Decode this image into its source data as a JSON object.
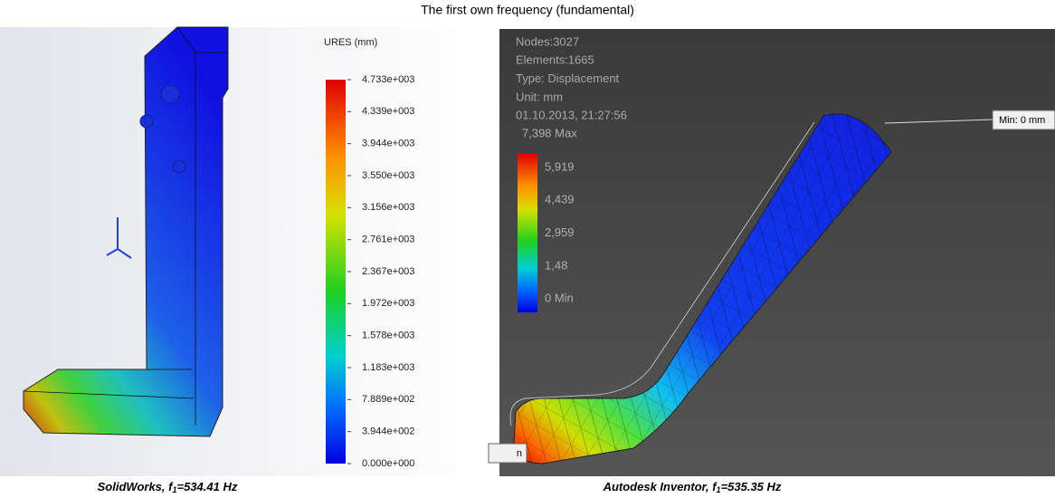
{
  "title": "The first own frequency (fundamental)",
  "left_panel": {
    "legend_title": "URES (mm)",
    "legend_labels": [
      "4.733e+003",
      "4.339e+003",
      "3.944e+003",
      "3.550e+003",
      "3.156e+003",
      "2.761e+003",
      "2.367e+003",
      "1.972e+003",
      "1.578e+003",
      "1.183e+003",
      "7.889e+002",
      "3.944e+002",
      "0.000e+000"
    ],
    "caption": {
      "prefix": "SolidWorks, f",
      "sub": "1",
      "suffix": "=534.41 Hz"
    }
  },
  "right_panel": {
    "info": [
      "Nodes:3027",
      "Elements:1665",
      "Type: Displacement",
      "Unit: mm",
      "01.10.2013, 21:27:56"
    ],
    "legend_labels": [
      "7,398 Max",
      "5,919",
      "4,439",
      "2,959",
      "1,48",
      "0 Min"
    ],
    "min_callout": "Min: 0 mm",
    "callout_fragment": "n",
    "caption": {
      "prefix": "Autodesk Inventor, f",
      "sub": "1",
      "suffix": "=535.35 Hz"
    }
  }
}
